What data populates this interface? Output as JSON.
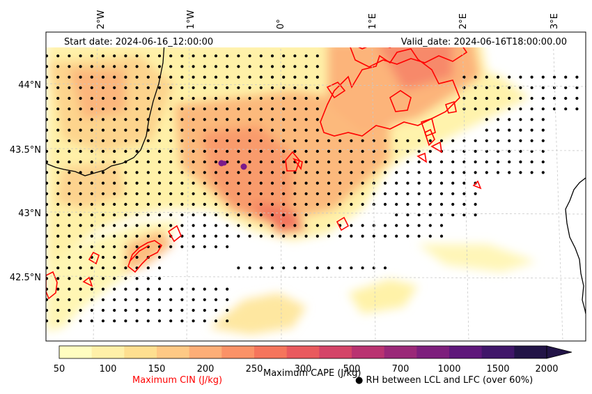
{
  "map": {
    "start_date": "Start date: 2024-06-16_12:00:00",
    "valid_date": "Valid_date: 2024-06-16T18:00:00.00",
    "lon_labels": [
      "2°W",
      "1°W",
      "0°",
      "1°E",
      "2°E",
      "3°E"
    ],
    "lat_labels": [
      "44°N",
      "43.5°N",
      "43°N",
      "42.5°N"
    ]
  },
  "colorbar": {
    "ticks": [
      "50",
      "100",
      "150",
      "200",
      "250",
      "300",
      "500",
      "700",
      "1000",
      "1500",
      "2000"
    ],
    "colors": [
      "#fffdc0",
      "#fff0a8",
      "#fedf90",
      "#fec985",
      "#fdae77",
      "#fb9267",
      "#f5755c",
      "#e95a5e",
      "#d44468",
      "#b93371",
      "#9a2878",
      "#7d1f7c",
      "#5e177a",
      "#401669",
      "#221447"
    ],
    "cape_label": "Maximum CAPE (J/kg)",
    "cin_label": "Maximum CIN (J/kg)",
    "cin_color": "#ff0000",
    "rh_symbol": "●",
    "rh_label": "RH between LCL and LFC (over 60%)"
  }
}
